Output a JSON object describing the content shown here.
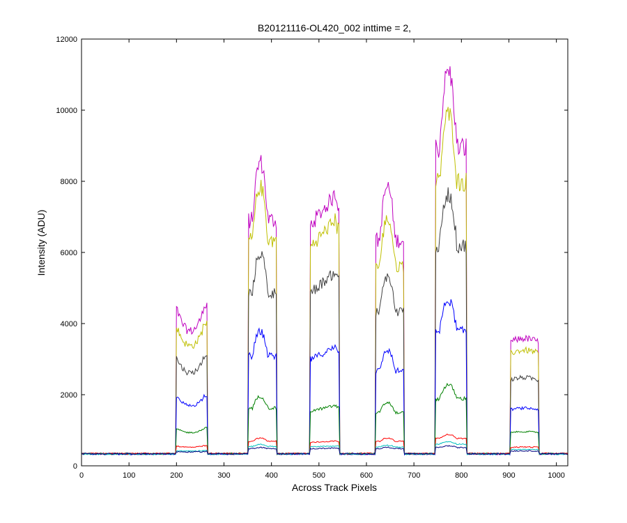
{
  "chart_data": {
    "type": "line",
    "title": "B20121116-OL420_002 inttime = 2,",
    "xlabel": "Across Track Pixels",
    "ylabel": "Intensity (ADU)",
    "xlim": [
      0,
      1024
    ],
    "ylim": [
      0,
      12000
    ],
    "xticks": [
      0,
      100,
      200,
      300,
      400,
      500,
      600,
      700,
      800,
      900,
      1000
    ],
    "yticks": [
      0,
      2000,
      4000,
      6000,
      8000,
      10000,
      12000
    ],
    "grid": false,
    "legend": "none",
    "baseline_value": 330,
    "plateaus": [
      {
        "start": 200,
        "end": 265,
        "shape": "dip"
      },
      {
        "start": 352,
        "end": 410,
        "shape": "peak"
      },
      {
        "start": 482,
        "end": 542,
        "shape": "rise"
      },
      {
        "start": 620,
        "end": 678,
        "shape": "peak"
      },
      {
        "start": 745,
        "end": 810,
        "shape": "peak"
      },
      {
        "start": 903,
        "end": 962,
        "shape": "flat"
      }
    ],
    "series": [
      {
        "color": "#bf00bf",
        "plateau_max": [
          4450,
          8550,
          7650,
          7850,
          11100,
          3580
        ]
      },
      {
        "color": "#bfbf00",
        "plateau_max": [
          3950,
          7850,
          6950,
          6950,
          9900,
          3250
        ]
      },
      {
        "color": "#404040",
        "plateau_max": [
          3050,
          5980,
          5480,
          5330,
          7650,
          2480
        ]
      },
      {
        "color": "#0000ff",
        "plateau_max": [
          1950,
          3780,
          3350,
          3250,
          4650,
          1620
        ]
      },
      {
        "color": "#008000",
        "plateau_max": [
          1050,
          1950,
          1700,
          1780,
          2280,
          960
        ]
      },
      {
        "color": "#ff0000",
        "plateau_max": [
          560,
          780,
          700,
          780,
          880,
          530
        ]
      },
      {
        "color": "#00bfbf",
        "plateau_max": [
          430,
          600,
          560,
          580,
          680,
          460
        ]
      },
      {
        "color": "#000080",
        "plateau_max": [
          400,
          520,
          500,
          520,
          560,
          420
        ]
      }
    ]
  }
}
